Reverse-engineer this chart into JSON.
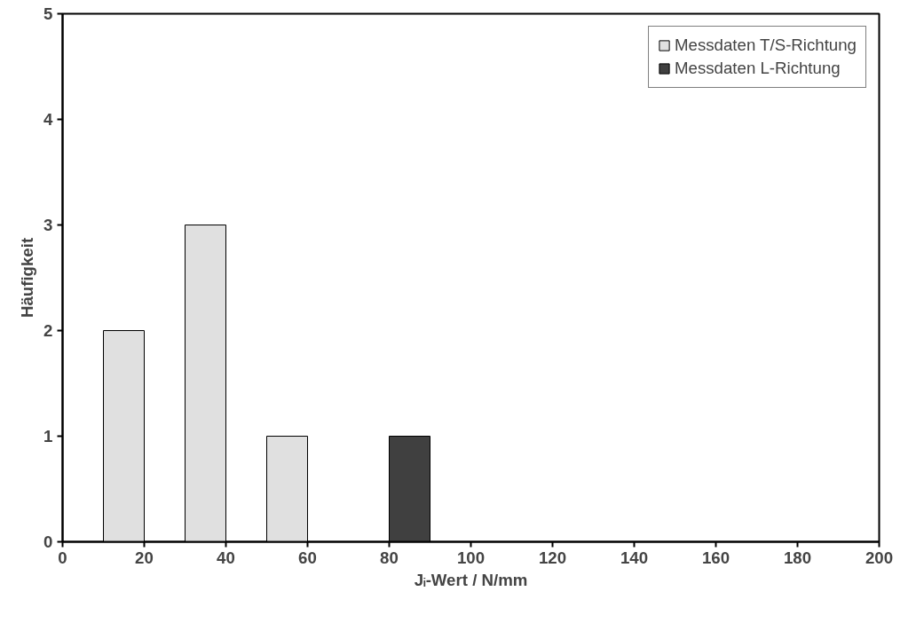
{
  "chart_data": {
    "type": "histogram",
    "xlabel": "Jᵢ-Wert / N/mm",
    "ylabel": "Häufigkeit",
    "bins": [
      10,
      20,
      30,
      40,
      50,
      60,
      70,
      80,
      90
    ],
    "series": [
      {
        "name": "Messdaten T/S-Richtung",
        "color": "#e0e0e0",
        "values": [
          2,
          null,
          3,
          null,
          1,
          null,
          null,
          null
        ]
      },
      {
        "name": "Messdaten L-Richtung",
        "color": "#404040",
        "values": [
          null,
          null,
          null,
          null,
          null,
          null,
          null,
          1
        ]
      }
    ],
    "xlim": [
      0,
      200
    ],
    "xticks": [
      0,
      20,
      40,
      60,
      80,
      100,
      120,
      140,
      160,
      180,
      200
    ],
    "ylim": [
      0,
      5
    ],
    "yticks": [
      0,
      1,
      2,
      3,
      4,
      5
    ],
    "grid": false,
    "legend": "top right"
  }
}
